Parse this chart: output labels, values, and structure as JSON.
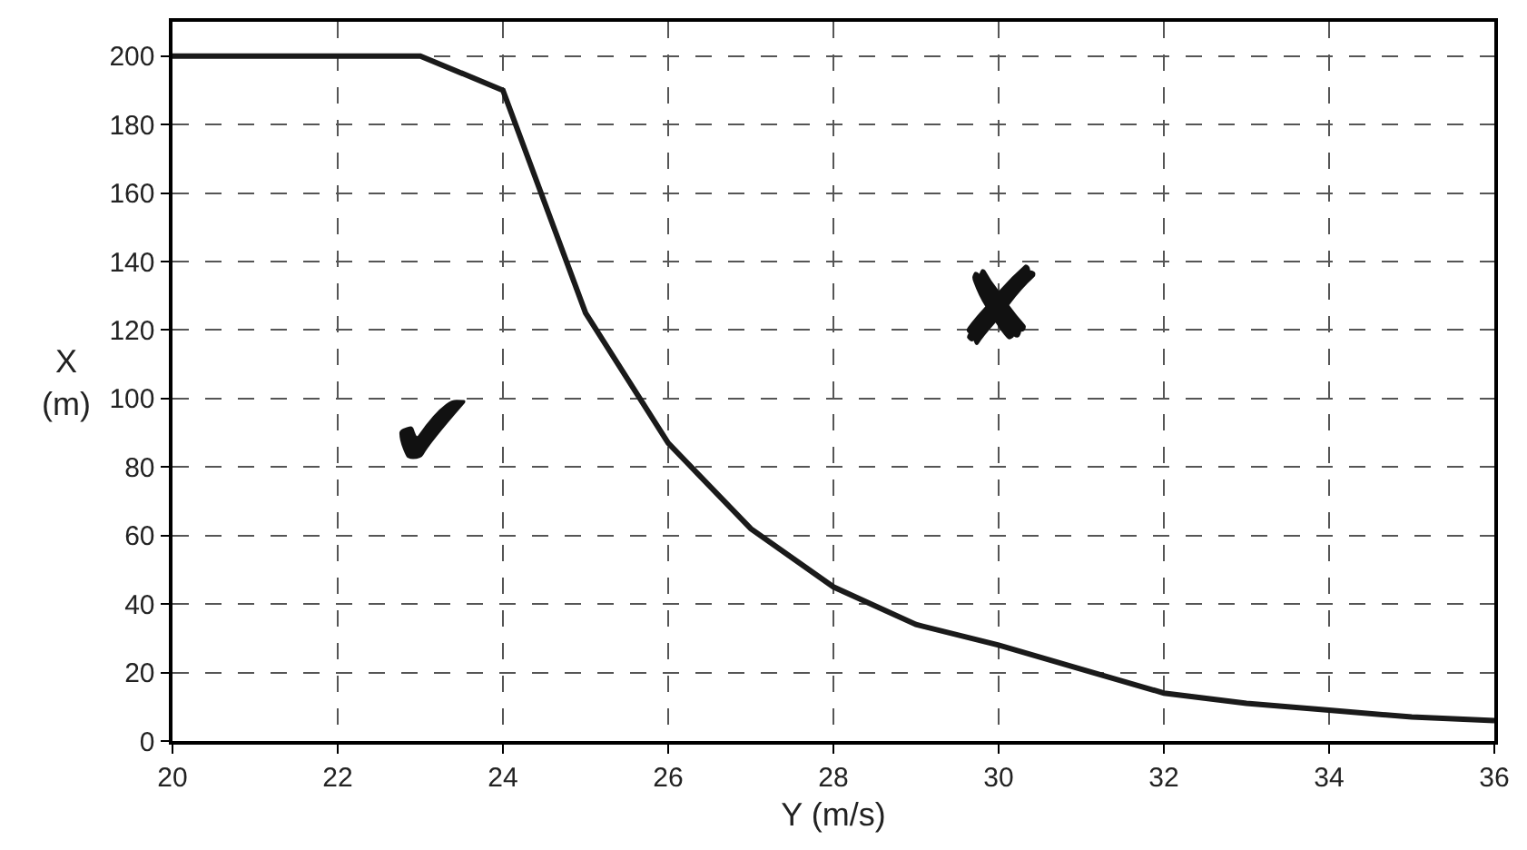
{
  "chart_data": {
    "type": "line",
    "xlabel": "Y (m/s)",
    "ylabel": "X (m)",
    "x": [
      20,
      23,
      24,
      25,
      26,
      27,
      28,
      29,
      30,
      31,
      32,
      33,
      34,
      35,
      36
    ],
    "series": [
      {
        "color": "#1a1a1a",
        "values": [
          200,
          200,
          190,
          125,
          87,
          62,
          45,
          34,
          28,
          21,
          14,
          11,
          9,
          7,
          6
        ]
      }
    ],
    "xlim": [
      20,
      36
    ],
    "xticks": [
      20,
      22,
      24,
      26,
      28,
      30,
      32,
      34,
      36
    ],
    "ylim": [
      0,
      210
    ],
    "yticks": [
      0,
      20,
      40,
      60,
      80,
      100,
      120,
      140,
      160,
      180,
      200
    ],
    "grid": true,
    "line_style": "solid",
    "marker": "none",
    "legend": false,
    "annotations": [
      "✔",
      "✘"
    ]
  }
}
